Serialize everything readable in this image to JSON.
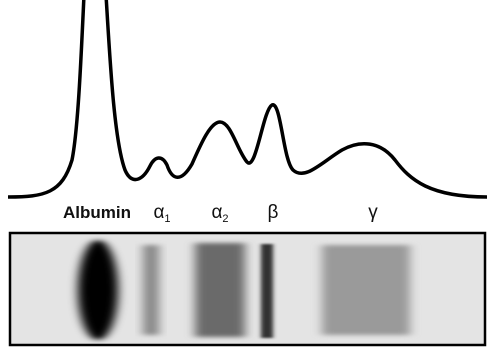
{
  "labels": [
    {
      "text": "Albumin"
    },
    {
      "text": "α",
      "sub": "1"
    },
    {
      "text": "α",
      "sub": "2"
    },
    {
      "text": "β"
    },
    {
      "text": "γ"
    }
  ]
}
